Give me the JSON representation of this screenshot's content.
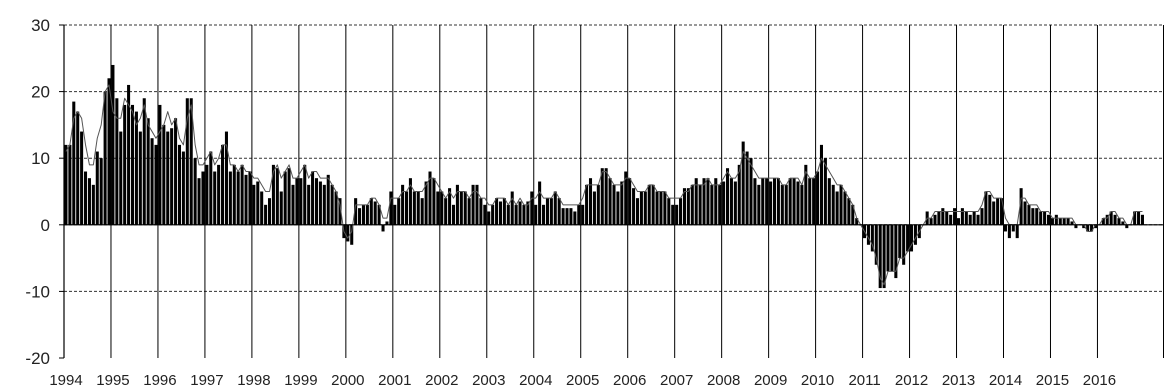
{
  "chart_data": {
    "type": "bar",
    "x_start": "1994-01",
    "x_end": "2016-12",
    "xlim": [
      "1994-01",
      "2017-06"
    ],
    "ylim": [
      -20,
      30
    ],
    "y_ticks": [
      "30",
      "20",
      "10",
      "0",
      "-10",
      "-20"
    ],
    "x_ticks": [
      "1994",
      "1995",
      "1996",
      "1997",
      "1998",
      "1999",
      "2000",
      "2001",
      "2002",
      "2003",
      "2004",
      "2005",
      "2006",
      "2007",
      "2008",
      "2009",
      "2010",
      "2011",
      "2012",
      "2013",
      "2014",
      "2015",
      "2016"
    ],
    "grid": {
      "horizontal_dashed": true,
      "vertical_solid": true
    },
    "series": [
      {
        "type": "bar",
        "color": "#000000",
        "year_values": {
          "1994": [
            12,
            12,
            18.5,
            17,
            14,
            8,
            7,
            6,
            11,
            10,
            20,
            22
          ],
          "1995": [
            24,
            19,
            14,
            18,
            21,
            18,
            17,
            14,
            19,
            16,
            13,
            12
          ],
          "1996": [
            18,
            15,
            14,
            14.5,
            16,
            12,
            11,
            19,
            19,
            10,
            7,
            8
          ],
          "1997": [
            9,
            11,
            8,
            9,
            12,
            14,
            8,
            9,
            8,
            9,
            7.5,
            8
          ],
          "1998": [
            6,
            6.5,
            5,
            3,
            4,
            9,
            8.5,
            5,
            8,
            8.5,
            6,
            7
          ],
          "1999": [
            7,
            9,
            6,
            8,
            7,
            6.5,
            6,
            7.5,
            6,
            5,
            4,
            -2
          ],
          "2000": [
            -2.5,
            -3,
            4,
            2.5,
            3,
            3,
            4,
            3.5,
            3,
            -1,
            0.5,
            5
          ],
          "2001": [
            3,
            4,
            6,
            5,
            7,
            5,
            5,
            4,
            6.5,
            8,
            7,
            5
          ],
          "2002": [
            5,
            4,
            5.5,
            3,
            6,
            5,
            5,
            4,
            6,
            6,
            4,
            3
          ],
          "2003": [
            2,
            3,
            4,
            3.5,
            4,
            3,
            5,
            3,
            3.5,
            3,
            3.5,
            5
          ],
          "2004": [
            3,
            6.5,
            3,
            4,
            4,
            5,
            4,
            2.5,
            2.5,
            2.5,
            2,
            3
          ],
          "2005": [
            3,
            6,
            7,
            5,
            6,
            8.5,
            8.5,
            7,
            6,
            5,
            6.5,
            8
          ],
          "2006": [
            7,
            5.5,
            4,
            5,
            5,
            6,
            6,
            5,
            5,
            5,
            4,
            3
          ],
          "2007": [
            3,
            4,
            5.5,
            5.5,
            6,
            7,
            6,
            7,
            7,
            6,
            7,
            6
          ],
          "2008": [
            6.5,
            8.5,
            7,
            6.5,
            9,
            12.5,
            11,
            10,
            7,
            6,
            7,
            7
          ],
          "2009": [
            6.5,
            7,
            7,
            6,
            6,
            7,
            7,
            6.5,
            6,
            9,
            7,
            7
          ],
          "2010": [
            8,
            12,
            10,
            7,
            6,
            5,
            6,
            5,
            4,
            3,
            1,
            0
          ],
          "2011": [
            -2,
            -3,
            -4,
            -6,
            -9.5,
            -9.5,
            -7,
            -7,
            -8,
            -5,
            -6,
            -4
          ],
          "2012": [
            -4,
            -3,
            -2,
            0,
            2,
            1,
            1.5,
            2,
            2.5,
            2,
            1.5,
            2.5
          ],
          "2013": [
            1,
            2.5,
            2,
            1.5,
            2,
            1.5,
            2.5,
            5,
            4.5,
            3.5,
            4,
            4
          ],
          "2014": [
            -1,
            -2,
            -1,
            -2,
            5.5,
            3.5,
            3,
            2.5,
            2.5,
            2,
            2,
            1.5
          ],
          "2015": [
            1,
            1.5,
            1,
            1,
            1,
            0.5,
            -0.5,
            0,
            -0.5,
            -1,
            -1,
            -0.5
          ],
          "2016": [
            0,
            1,
            1.5,
            2,
            1.5,
            1,
            0.5,
            -0.5,
            0,
            2,
            2,
            1.5
          ]
        }
      },
      {
        "type": "line",
        "color": "#555555",
        "year_values": {
          "1994": [
            11,
            12,
            16,
            17,
            16,
            12,
            9,
            9,
            13,
            15,
            20,
            21
          ],
          "1995": [
            17,
            16,
            16,
            19,
            18,
            17,
            15,
            16,
            18,
            15,
            14,
            13
          ],
          "1996": [
            14,
            15,
            17,
            15,
            16,
            13,
            12,
            16,
            18,
            12,
            9,
            9
          ],
          "1997": [
            10,
            11,
            9,
            10,
            12,
            12,
            9,
            9,
            8,
            9,
            8,
            8
          ],
          "1998": [
            7,
            7,
            6,
            5,
            5,
            8,
            9,
            7,
            8,
            9,
            7,
            7
          ],
          "1999": [
            8,
            9,
            7,
            8,
            8,
            7,
            7,
            7,
            6,
            5,
            3,
            -1
          ],
          "2000": [
            -2,
            -1,
            3,
            3,
            3,
            3,
            4,
            4,
            3,
            1,
            1,
            4
          ],
          "2001": [
            4,
            4,
            5,
            5,
            6,
            5,
            5,
            5,
            6,
            7,
            7,
            6
          ],
          "2002": [
            5,
            4,
            5,
            4,
            5,
            5,
            5,
            4,
            5,
            5,
            4,
            4
          ],
          "2003": [
            3,
            3,
            4,
            4,
            4,
            3,
            4,
            3,
            4,
            3,
            3,
            4
          ],
          "2004": [
            4,
            5,
            4,
            4,
            4,
            5,
            4,
            3,
            3,
            3,
            3,
            3
          ],
          "2005": [
            4,
            6,
            6,
            6,
            6,
            8,
            8,
            7,
            6,
            6,
            6,
            7
          ],
          "2006": [
            7,
            6,
            5,
            5,
            5,
            6,
            6,
            5,
            5,
            5,
            4,
            4
          ],
          "2007": [
            4,
            4,
            5,
            5,
            6,
            6,
            6,
            6,
            7,
            6,
            6,
            6
          ],
          "2008": [
            7,
            8,
            7,
            7,
            8,
            11,
            10,
            9,
            8,
            7,
            7,
            7
          ],
          "2009": [
            7,
            7,
            7,
            6,
            6,
            7,
            7,
            7,
            6,
            8,
            7,
            7
          ],
          "2010": [
            8,
            10,
            9,
            8,
            7,
            6,
            6,
            5,
            4,
            3,
            1,
            0
          ],
          "2011": [
            -1,
            -2,
            -3,
            -5,
            -8,
            -9,
            -7,
            -7,
            -7,
            -5,
            -5,
            -4
          ],
          "2012": [
            -3,
            -2,
            -1,
            0,
            1,
            1,
            2,
            2,
            2,
            2,
            2,
            2
          ],
          "2013": [
            2,
            2,
            2,
            2,
            2,
            2,
            3,
            5,
            5,
            4,
            4,
            4
          ],
          "2014": [
            1,
            0,
            0,
            0,
            4,
            4,
            3,
            3,
            3,
            2,
            2,
            2
          ],
          "2015": [
            1,
            1,
            1,
            1,
            1,
            1,
            0,
            0,
            0,
            -1,
            -1,
            0
          ],
          "2016": [
            0,
            1,
            1,
            2,
            2,
            1,
            1,
            0,
            0,
            2,
            2,
            2
          ]
        }
      }
    ]
  }
}
